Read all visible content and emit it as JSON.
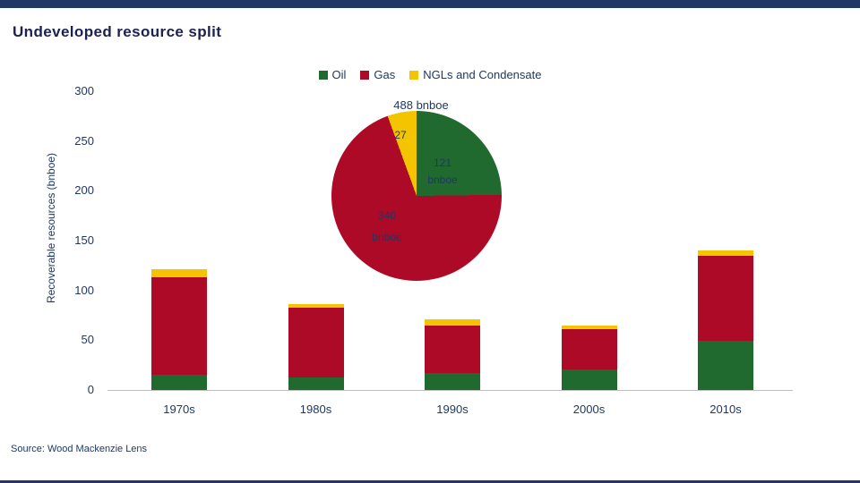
{
  "page": {
    "title": "Undeveloped resource split",
    "source": "Source:  Wood Mackenzie Lens"
  },
  "colors": {
    "oil": "#20692f",
    "gas": "#ad0a28",
    "ngl": "#f5c400",
    "navy": "#1f3864",
    "title": "#1c2150",
    "topbar": "#1f3864",
    "axisline": "#bfbfbf"
  },
  "chart_data": [
    {
      "type": "bar",
      "title": "Undeveloped resource split",
      "ylabel": "Recoverable resources (bnboe)",
      "ylim": [
        0,
        300
      ],
      "yticks": [
        0,
        50,
        100,
        150,
        200,
        250,
        300
      ],
      "categories": [
        "1970s",
        "1980s",
        "1990s",
        "2000s",
        "2010s"
      ],
      "series": [
        {
          "name": "Oil",
          "color": "#20692f",
          "values": [
            15,
            13,
            17,
            21,
            49
          ]
        },
        {
          "name": "Gas",
          "color": "#ad0a28",
          "values": [
            98,
            70,
            48,
            40,
            86
          ]
        },
        {
          "name": "NGLs and Condensate",
          "color": "#f5c400",
          "values": [
            8,
            3,
            6,
            4,
            5
          ]
        }
      ],
      "legend": [
        "Oil",
        "Gas",
        "NGLs and Condensate"
      ],
      "legend_position": "top",
      "grid": false
    },
    {
      "type": "pie",
      "total_label": "488 bnboe",
      "slices": [
        {
          "name": "Oil",
          "color": "#20692f",
          "value": 121,
          "value_label": "121",
          "unit_label": "bnboe"
        },
        {
          "name": "Gas",
          "color": "#ad0a28",
          "value": 340,
          "value_label": "340",
          "unit_label": "bnboe"
        },
        {
          "name": "NGLs and Condensate",
          "color": "#f5c400",
          "value": 27,
          "value_label": "27",
          "unit_label": ""
        }
      ]
    }
  ]
}
